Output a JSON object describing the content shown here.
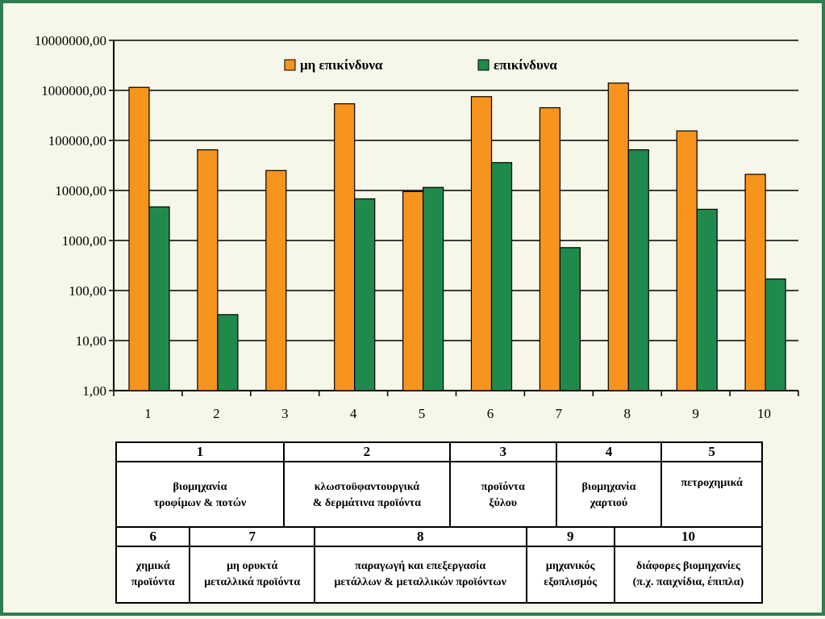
{
  "chart_data": {
    "type": "bar",
    "scale": "log",
    "categories": [
      "1",
      "2",
      "3",
      "4",
      "5",
      "6",
      "7",
      "8",
      "9",
      "10"
    ],
    "series": [
      {
        "name": "μη επικίνδυνα",
        "color": "#f7941d",
        "values": [
          1150000,
          65000,
          25000,
          540000,
          9500,
          750000,
          450000,
          1400000,
          155000,
          21000
        ]
      },
      {
        "name": "επικίνδυνα",
        "color": "#1f8a4c",
        "values": [
          4700,
          33,
          null,
          6800,
          11500,
          36000,
          720,
          65000,
          4200,
          170
        ]
      }
    ],
    "yticks": [
      "1,00",
      "10,00",
      "100,00",
      "1000,00",
      "10000,00",
      "100000,00",
      "1000000,00",
      "10000000,00"
    ],
    "ylim": [
      1,
      10000000
    ],
    "legend_position": "top-center",
    "grid": true
  },
  "table_top": [
    {
      "num": "1",
      "line1": "βιομηχανία",
      "line2": "τροφίμων & ποτών"
    },
    {
      "num": "2",
      "line1": "κλωστοϋφαντουργικά",
      "line2": "& δερμάτινα προϊόντα"
    },
    {
      "num": "3",
      "line1": "προϊόντα",
      "line2": "ξύλου"
    },
    {
      "num": "4",
      "line1": "βιομηχανία",
      "line2": "χαρτιού"
    },
    {
      "num": "5",
      "line1": "πετροχημικά",
      "line2": ""
    }
  ],
  "table_bottom": [
    {
      "num": "6",
      "line1": "χημικά",
      "line2": "προϊόντα"
    },
    {
      "num": "7",
      "line1": "μη ορυκτά",
      "line2": "μεταλλικά προϊόντα"
    },
    {
      "num": "8",
      "line1": "παραγωγή και επεξεργασία",
      "line2": "μετάλλων & μεταλλικών προϊόντων"
    },
    {
      "num": "9",
      "line1": "μηχανικός",
      "line2": "εξοπλισμός"
    },
    {
      "num": "10",
      "line1": "διάφορες βιομηχανίες",
      "line2": "(π.χ. παιχνίδια, έπιπλα)"
    }
  ]
}
